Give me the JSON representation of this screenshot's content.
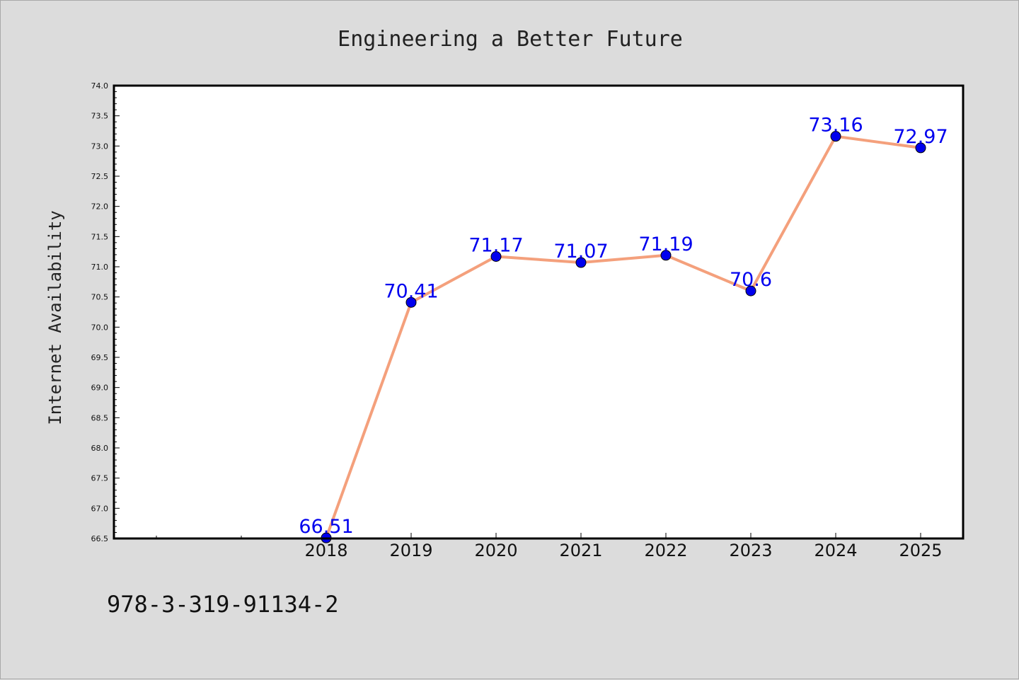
{
  "chart_data": {
    "type": "line",
    "title": "Engineering a Better Future",
    "xlabel": "",
    "ylabel": "Internet Availability",
    "x": [
      "2018",
      "2019",
      "2020",
      "2021",
      "2022",
      "2023",
      "2024",
      "2025"
    ],
    "series": [
      {
        "values": [
          66.51,
          70.41,
          71.17,
          71.07,
          71.19,
          70.6,
          73.16,
          72.97
        ],
        "labels": [
          "66.51",
          "70.41",
          "71.17",
          "71.07",
          "71.19",
          "70.6",
          "73.16",
          "72.97"
        ],
        "line_color": "#f4a07c",
        "marker_color": "#0000ee"
      }
    ],
    "ylim": [
      66.5,
      74.0
    ],
    "y_ticks": [
      "66.5",
      "67.0",
      "67.5",
      "68.0",
      "68.5",
      "69.0",
      "69.5",
      "70.0",
      "70.5",
      "71.0",
      "71.5",
      "72.0",
      "72.5",
      "73.0",
      "73.5",
      "74.0"
    ],
    "grid": false,
    "label_color": "#0000ee"
  },
  "footer": {
    "isbn": "978-3-319-91134-2"
  }
}
